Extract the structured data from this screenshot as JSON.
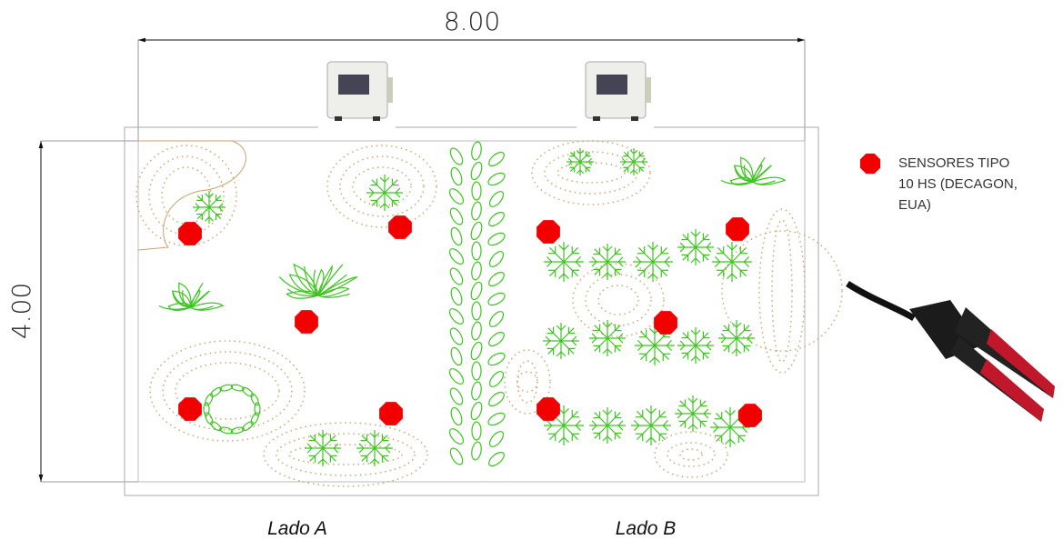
{
  "dimensions": {
    "width": "8.00",
    "height": "4.00"
  },
  "legend": {
    "label_lines": [
      "SENSORES TIPO",
      "10 HS (DECAGON,",
      "EUA)"
    ]
  },
  "sides": [
    "Lado A",
    "Lado B"
  ]
}
